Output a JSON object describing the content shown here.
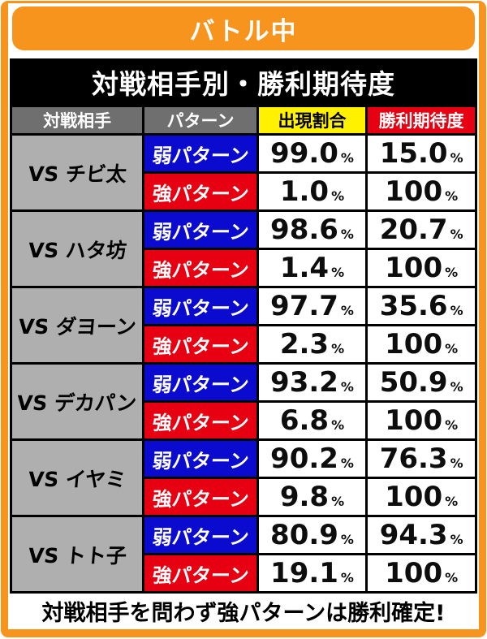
{
  "page": {
    "title": "バトル中",
    "heading": "対戦相手別・勝利期待度",
    "footer_note": "対戦相手を問わず強パターンは勝利確定!"
  },
  "table": {
    "headers": {
      "opponent": "対戦相手",
      "pattern": "パターン",
      "appearance": "出現割合",
      "win": "勝利期待度"
    },
    "percent_suffix": "%",
    "rows": [
      {
        "opponent": "VS チビ太",
        "weak_label": "弱パターン",
        "weak_rate": "99.0",
        "weak_win": "15.0",
        "strong_label": "強パターン",
        "strong_rate": "1.0",
        "strong_win": "100"
      },
      {
        "opponent": "VS ハタ坊",
        "weak_label": "弱パターン",
        "weak_rate": "98.6",
        "weak_win": "20.7",
        "strong_label": "強パターン",
        "strong_rate": "1.4",
        "strong_win": "100"
      },
      {
        "opponent": "VS ダヨーン",
        "weak_label": "弱パターン",
        "weak_rate": "97.7",
        "weak_win": "35.6",
        "strong_label": "強パターン",
        "strong_rate": "2.3",
        "strong_win": "100"
      },
      {
        "opponent": "VS デカパン",
        "weak_label": "弱パターン",
        "weak_rate": "93.2",
        "weak_win": "50.9",
        "strong_label": "強パターン",
        "strong_rate": "6.8",
        "strong_win": "100"
      },
      {
        "opponent": "VS イヤミ",
        "weak_label": "弱パターン",
        "weak_rate": "90.2",
        "weak_win": "76.3",
        "strong_label": "強パターン",
        "strong_rate": "9.8",
        "strong_win": "100"
      },
      {
        "opponent": "VS トト子",
        "weak_label": "弱パターン",
        "weak_rate": "80.9",
        "weak_win": "94.3",
        "strong_label": "強パターン",
        "strong_rate": "19.1",
        "strong_win": "100"
      }
    ]
  },
  "colors": {
    "accent_orange": "#F7941D",
    "weak_blue": "#0B0BD0",
    "strong_red": "#E60012",
    "appearance_yellow": "#FFF100",
    "header_gray": "#6F6F6F",
    "opponent_gray": "#AFAFAF"
  },
  "chart_data": {
    "type": "table",
    "title": "対戦相手別・勝利期待度",
    "context": "バトル中",
    "columns": [
      "対戦相手",
      "パターン",
      "出現割合",
      "勝利期待度"
    ],
    "rows": [
      [
        "VS チビ太",
        "弱パターン",
        "99.0%",
        "15.0%"
      ],
      [
        "VS チビ太",
        "強パターン",
        "1.0%",
        "100%"
      ],
      [
        "VS ハタ坊",
        "弱パターン",
        "98.6%",
        "20.7%"
      ],
      [
        "VS ハタ坊",
        "強パターン",
        "1.4%",
        "100%"
      ],
      [
        "VS ダヨーン",
        "弱パターン",
        "97.7%",
        "35.6%"
      ],
      [
        "VS ダヨーン",
        "強パターン",
        "2.3%",
        "100%"
      ],
      [
        "VS デカパン",
        "弱パターン",
        "93.2%",
        "50.9%"
      ],
      [
        "VS デカパン",
        "強パターン",
        "6.8%",
        "100%"
      ],
      [
        "VS イヤミ",
        "弱パターン",
        "90.2%",
        "76.3%"
      ],
      [
        "VS イヤミ",
        "強パターン",
        "9.8%",
        "100%"
      ],
      [
        "VS トト子",
        "弱パターン",
        "80.9%",
        "94.3%"
      ],
      [
        "VS トト子",
        "強パターン",
        "19.1%",
        "100%"
      ]
    ],
    "note": "対戦相手を問わず強パターンは勝利確定!"
  }
}
